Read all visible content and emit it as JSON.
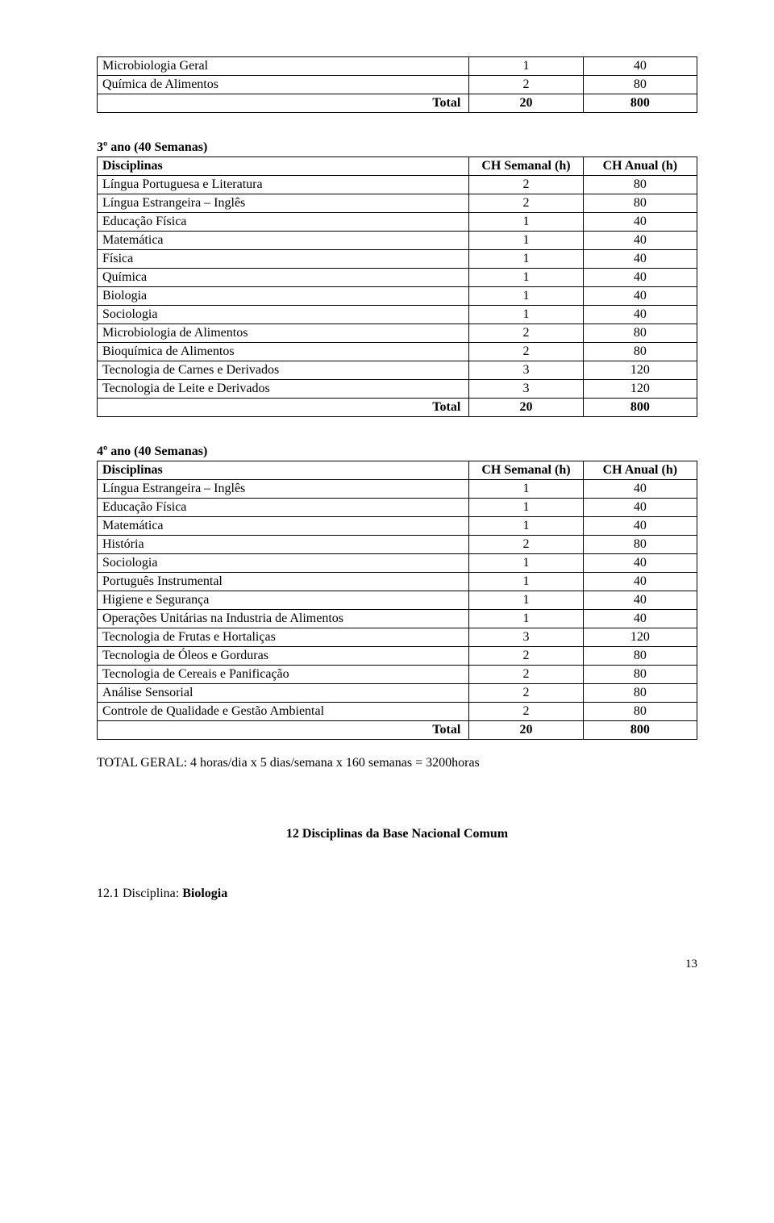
{
  "table0": {
    "rows": [
      {
        "name": "Microbiologia Geral",
        "a": "1",
        "b": "40"
      },
      {
        "name": "Química de Alimentos",
        "a": "2",
        "b": "80"
      }
    ],
    "total_label": "Total",
    "total_a": "20",
    "total_b": "800"
  },
  "section3": {
    "title": "3º ano (40 Semanas)"
  },
  "table3": {
    "header": {
      "name": "Disciplinas",
      "a": "CH Semanal (h)",
      "b": "CH Anual (h)"
    },
    "rows": [
      {
        "name": "Língua Portuguesa e Literatura",
        "a": "2",
        "b": "80"
      },
      {
        "name": "Língua Estrangeira – Inglês",
        "a": "2",
        "b": "80"
      },
      {
        "name": "Educação Física",
        "a": "1",
        "b": "40"
      },
      {
        "name": "Matemática",
        "a": "1",
        "b": "40"
      },
      {
        "name": "Física",
        "a": "1",
        "b": "40"
      },
      {
        "name": "Química",
        "a": "1",
        "b": "40"
      },
      {
        "name": "Biologia",
        "a": "1",
        "b": "40"
      },
      {
        "name": "Sociologia",
        "a": "1",
        "b": "40"
      },
      {
        "name": "Microbiologia de Alimentos",
        "a": "2",
        "b": "80"
      },
      {
        "name": "Bioquímica de Alimentos",
        "a": "2",
        "b": "80"
      },
      {
        "name": "Tecnologia de Carnes e Derivados",
        "a": "3",
        "b": "120"
      },
      {
        "name": "Tecnologia de Leite e Derivados",
        "a": "3",
        "b": "120"
      }
    ],
    "total_label": "Total",
    "total_a": "20",
    "total_b": "800"
  },
  "section4": {
    "title": "4º ano (40 Semanas)"
  },
  "table4": {
    "header": {
      "name": "Disciplinas",
      "a": "CH Semanal (h)",
      "b": "CH Anual (h)"
    },
    "rows": [
      {
        "name": "Língua Estrangeira – Inglês",
        "a": "1",
        "b": "40"
      },
      {
        "name": "Educação Física",
        "a": "1",
        "b": "40"
      },
      {
        "name": "Matemática",
        "a": "1",
        "b": "40"
      },
      {
        "name": "História",
        "a": "2",
        "b": "80"
      },
      {
        "name": "Sociologia",
        "a": "1",
        "b": "40"
      },
      {
        "name": "Português Instrumental",
        "a": "1",
        "b": "40"
      },
      {
        "name": "Higiene e Segurança",
        "a": "1",
        "b": "40"
      },
      {
        "name": "Operações Unitárias na Industria de Alimentos",
        "a": "1",
        "b": "40"
      },
      {
        "name": "Tecnologia de Frutas e Hortaliças",
        "a": "3",
        "b": "120"
      },
      {
        "name": "Tecnologia de Óleos e Gorduras",
        "a": "2",
        "b": "80"
      },
      {
        "name": "Tecnologia de Cereais e Panificação",
        "a": "2",
        "b": "80"
      },
      {
        "name": "Análise Sensorial",
        "a": "2",
        "b": "80"
      },
      {
        "name": "Controle de Qualidade e Gestão Ambiental",
        "a": "2",
        "b": "80"
      }
    ],
    "total_label": "Total",
    "total_a": "20",
    "total_b": "800"
  },
  "total_geral": "TOTAL GERAL: 4 horas/dia x 5 dias/semana x 160 semanas = 3200horas",
  "base_heading": "12  Disciplinas da Base Nacional Comum",
  "discipline_line_prefix": "12.1 Disciplina: ",
  "discipline_line_bold": "Biologia",
  "page_number": "13",
  "styling": {
    "font_family": "Times New Roman",
    "body_font_size_pt": 12,
    "text_color": "#000000",
    "background_color": "#ffffff",
    "table_border_color": "#000000",
    "table_col_widths_pct": [
      62,
      19,
      19
    ],
    "col_align": [
      "left",
      "center",
      "center"
    ]
  }
}
